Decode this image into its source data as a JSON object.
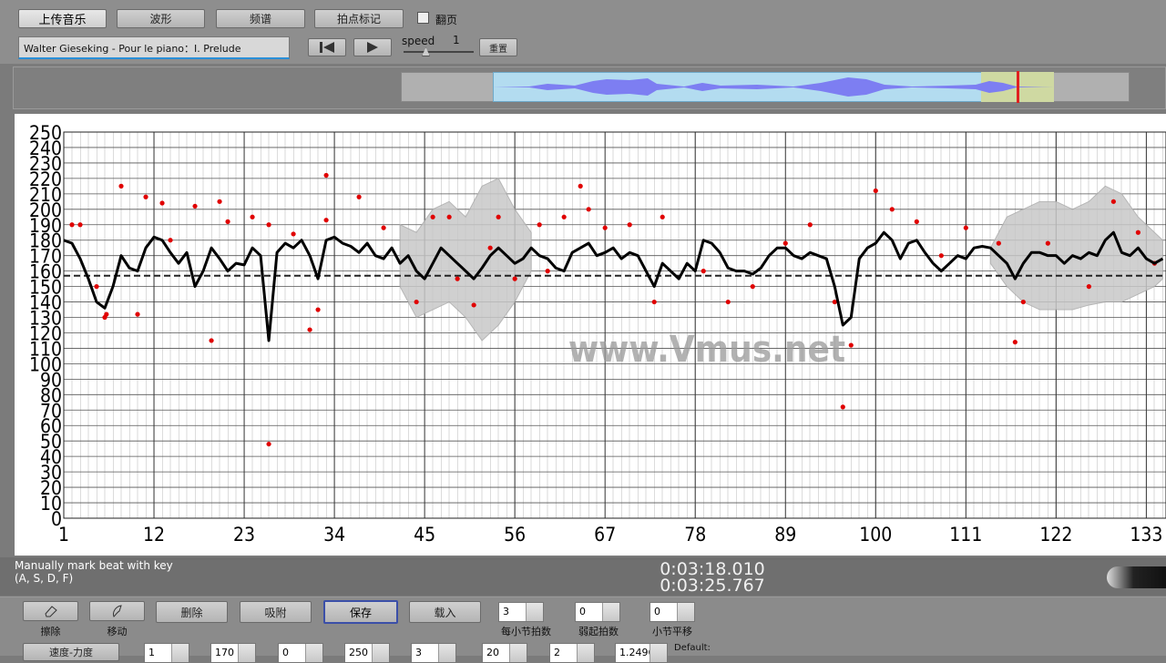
{
  "toolbar": {
    "buttons": [
      "上传音乐",
      "波形",
      "频谱",
      "拍点标记"
    ],
    "checkbox": "翻页",
    "song_title": "Walter Gieseking - Pour le piano：I. Prelude",
    "speed_label": "speed",
    "speed_value": 1,
    "reset": "重置"
  },
  "chart_data": {
    "type": "line",
    "x": [
      1,
      2,
      3,
      4,
      5,
      6,
      7,
      8,
      9,
      10,
      11,
      12,
      13,
      14,
      15,
      16,
      17,
      18,
      19,
      20,
      21,
      22,
      23,
      24,
      25,
      26,
      27,
      28,
      29,
      30,
      31,
      32,
      33,
      34,
      35,
      36,
      37,
      38,
      39,
      40,
      41,
      42,
      43,
      44,
      45,
      46,
      47,
      48,
      49,
      50,
      51,
      52,
      53,
      54,
      55,
      56,
      57,
      58,
      59,
      60,
      61,
      62,
      63,
      64,
      65,
      66,
      67,
      68,
      69,
      70,
      71,
      72,
      73,
      74,
      75,
      76,
      77,
      78,
      79,
      80,
      81,
      82,
      83,
      84,
      85,
      86,
      87,
      88,
      89,
      90,
      91,
      92,
      93,
      94,
      95,
      96,
      97,
      98,
      99,
      100,
      101,
      102,
      103,
      104,
      105,
      106,
      107,
      108,
      109,
      110,
      111,
      112,
      113,
      114,
      115,
      116,
      117,
      118,
      119,
      120,
      121,
      122,
      123,
      124,
      125,
      126,
      127,
      128,
      129,
      130,
      131,
      132,
      133,
      134,
      135
    ],
    "line": {
      "color": "#000000",
      "values": [
        180,
        178,
        168,
        155,
        140,
        136,
        150,
        170,
        162,
        160,
        175,
        182,
        180,
        172,
        165,
        172,
        150,
        160,
        175,
        168,
        160,
        165,
        164,
        175,
        170,
        115,
        172,
        178,
        175,
        180,
        170,
        155,
        180,
        182,
        178,
        176,
        172,
        178,
        170,
        168,
        175,
        165,
        170,
        160,
        155,
        165,
        175,
        170,
        165,
        160,
        155,
        162,
        170,
        175,
        170,
        165,
        168,
        175,
        170,
        168,
        162,
        160,
        172,
        175,
        178,
        170,
        172,
        175,
        168,
        172,
        170,
        160,
        150,
        165,
        160,
        155,
        165,
        160,
        180,
        178,
        172,
        162,
        160,
        160,
        158,
        162,
        170,
        175,
        175,
        170,
        168,
        172,
        170,
        168,
        150,
        125,
        130,
        168,
        175,
        178,
        185,
        180,
        168,
        178,
        180,
        172,
        165,
        160,
        165,
        170,
        168,
        175,
        176,
        175,
        170,
        165,
        155,
        165,
        172,
        172,
        170,
        170,
        165,
        170,
        168,
        172,
        170,
        180,
        185,
        172,
        170,
        175,
        168,
        165,
        168
      ]
    },
    "points": {
      "color": "#e00000",
      "x": [
        2,
        3,
        5,
        6,
        6.2,
        8,
        10,
        11,
        13,
        14,
        17,
        19,
        20,
        21,
        24,
        26,
        26,
        29,
        31,
        32,
        33,
        33,
        37,
        40,
        44,
        46,
        48,
        49,
        51,
        53,
        54,
        56,
        59,
        60,
        62,
        64,
        65,
        67,
        70,
        73,
        74,
        79,
        82,
        85,
        89,
        92,
        95,
        96,
        97,
        100,
        102,
        105,
        108,
        111,
        115,
        117,
        118,
        121,
        126,
        129,
        132,
        134
      ],
      "y": [
        190,
        190,
        150,
        130,
        132,
        215,
        132,
        208,
        204,
        180,
        202,
        115,
        205,
        192,
        195,
        48,
        190,
        184,
        122,
        135,
        222,
        193,
        208,
        188,
        140,
        195,
        195,
        155,
        138,
        175,
        195,
        155,
        190,
        160,
        195,
        215,
        200,
        188,
        190,
        140,
        195,
        160,
        140,
        150,
        178,
        190,
        140,
        72,
        112,
        212,
        200,
        192,
        170,
        188,
        178,
        114,
        140,
        178,
        150,
        205,
        185,
        165
      ]
    },
    "bands": [
      {
        "x": [
          42,
          44,
          46,
          48,
          50,
          52,
          54,
          56,
          58
        ],
        "upper": [
          190,
          185,
          200,
          205,
          195,
          215,
          220,
          200,
          185
        ],
        "lower": [
          150,
          130,
          135,
          140,
          130,
          115,
          125,
          140,
          160
        ]
      },
      {
        "x": [
          114,
          116,
          118,
          120,
          122,
          124,
          126,
          128,
          130,
          132,
          134,
          135
        ],
        "upper": [
          175,
          195,
          200,
          205,
          205,
          200,
          205,
          215,
          210,
          195,
          185,
          180
        ],
        "lower": [
          165,
          150,
          140,
          135,
          135,
          135,
          138,
          140,
          140,
          145,
          150,
          155
        ]
      }
    ],
    "band_color": "#c8c8c8",
    "mean_line": 157,
    "xlim": [
      1,
      135.4
    ],
    "ylim": [
      0,
      250
    ],
    "xticks": [
      1,
      12,
      23,
      34,
      45,
      56,
      67,
      78,
      89,
      100,
      111,
      122,
      133
    ],
    "yticks": [
      0,
      10,
      20,
      30,
      40,
      50,
      60,
      70,
      80,
      90,
      100,
      110,
      120,
      130,
      140,
      150,
      160,
      170,
      180,
      190,
      200,
      210,
      220,
      230,
      240,
      250
    ],
    "grid": true,
    "watermark": "www.Vmus.net"
  },
  "status": {
    "hint": [
      "Manually mark beat with key",
      "(A, S, D, F)"
    ],
    "time_current": "0:03:18.010",
    "time_total": "0:03:25.767"
  },
  "controls": {
    "icon_buttons": [
      "擦除",
      "移动"
    ],
    "buttons": [
      "删除",
      "吸附",
      "保存",
      "载入"
    ],
    "spinners": [
      {
        "value": 3,
        "label": "每小节拍数"
      },
      {
        "value": 0,
        "label": "弱起拍数"
      },
      {
        "value": 0,
        "label": "小节平移"
      }
    ],
    "mode_button": "速度-力度",
    "inputs": [
      1,
      170,
      0,
      250,
      3,
      20,
      2,
      1.2496
    ],
    "default_label": "Default:"
  }
}
